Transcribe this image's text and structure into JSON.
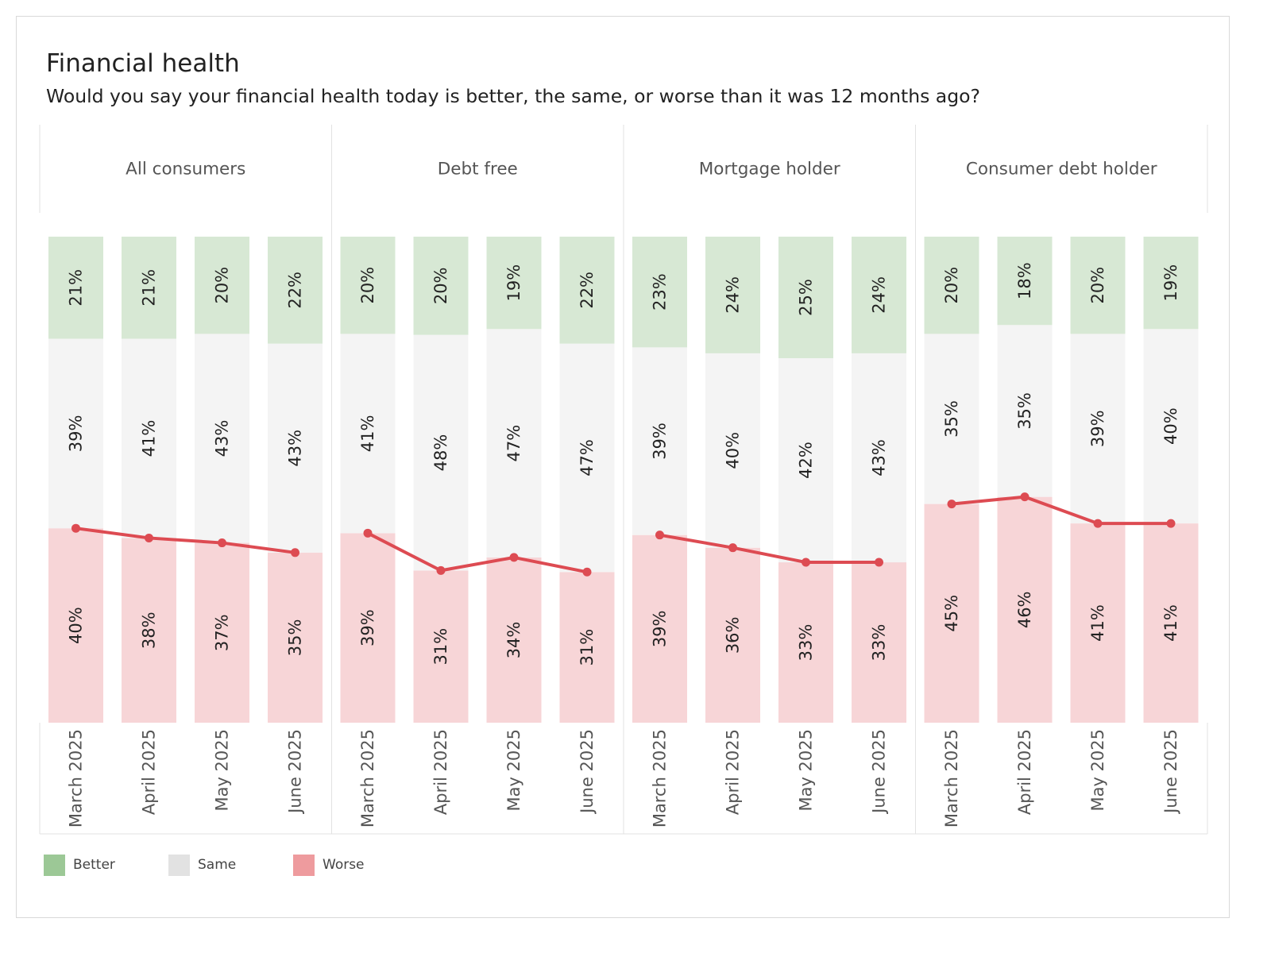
{
  "title": "Financial health",
  "subtitle": "Would you say your financial health today is better, the same, or worse than it was 12 months ago?",
  "colors": {
    "better": "#d7e8d4",
    "same": "#f4f4f4",
    "worse": "#f7d5d7",
    "worse_line": "#dd4b52",
    "legend_better": "#9cc896",
    "legend_same": "#e2e2e2",
    "legend_worse": "#ee9b9e"
  },
  "legend": [
    {
      "key": "better",
      "label": "Better"
    },
    {
      "key": "same",
      "label": "Same"
    },
    {
      "key": "worse",
      "label": "Worse"
    }
  ],
  "chart_data": {
    "type": "bar",
    "stacked": true,
    "stack_order": [
      "Worse",
      "Same",
      "Better"
    ],
    "line_series": "Worse",
    "categories": [
      "March 2025",
      "April 2025",
      "May 2025",
      "June 2025"
    ],
    "ylim": [
      0,
      100
    ],
    "panels": [
      {
        "name": "All consumers",
        "series": [
          {
            "name": "Better",
            "values": [
              21,
              21,
              20,
              22
            ]
          },
          {
            "name": "Same",
            "values": [
              39,
              41,
              43,
              43
            ]
          },
          {
            "name": "Worse",
            "values": [
              40,
              38,
              37,
              35
            ]
          }
        ]
      },
      {
        "name": "Debt free",
        "series": [
          {
            "name": "Better",
            "values": [
              20,
              20,
              19,
              22
            ]
          },
          {
            "name": "Same",
            "values": [
              41,
              48,
              47,
              47
            ]
          },
          {
            "name": "Worse",
            "values": [
              39,
              31,
              34,
              31
            ]
          }
        ]
      },
      {
        "name": "Mortgage holder",
        "series": [
          {
            "name": "Better",
            "values": [
              23,
              24,
              25,
              24
            ]
          },
          {
            "name": "Same",
            "values": [
              39,
              40,
              42,
              43
            ]
          },
          {
            "name": "Worse",
            "values": [
              39,
              36,
              33,
              33
            ]
          }
        ]
      },
      {
        "name": "Consumer debt holder",
        "series": [
          {
            "name": "Better",
            "values": [
              20,
              18,
              20,
              19
            ]
          },
          {
            "name": "Same",
            "values": [
              35,
              35,
              39,
              40
            ]
          },
          {
            "name": "Worse",
            "values": [
              45,
              46,
              41,
              41
            ]
          }
        ]
      }
    ]
  }
}
